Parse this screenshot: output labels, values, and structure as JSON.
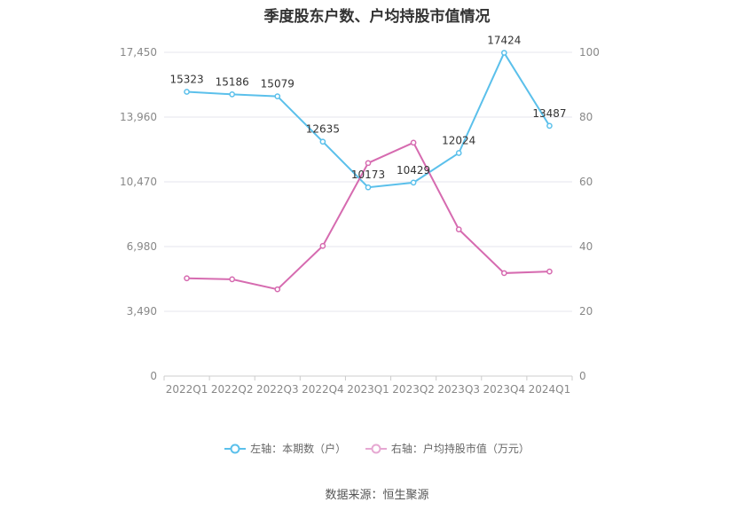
{
  "chart_data": {
    "type": "line",
    "title": "季度股东户数、户均持股市值情况",
    "categories": [
      "2022Q1",
      "2022Q2",
      "2022Q3",
      "2022Q4",
      "2023Q1",
      "2023Q2",
      "2023Q3",
      "2023Q4",
      "2024Q1"
    ],
    "left_axis": {
      "ylim": [
        0,
        17450
      ],
      "ticks": [
        "0",
        "3,490",
        "6,980",
        "10,470",
        "13,960",
        "17,450"
      ]
    },
    "right_axis": {
      "ylim": [
        0,
        100
      ],
      "ticks": [
        "0",
        "20",
        "40",
        "60",
        "80",
        "100"
      ]
    },
    "series": [
      {
        "name": "左轴：本期数（户）",
        "axis": "left",
        "color": "#5bc0eb",
        "values": [
          15323,
          15186,
          15079,
          12635,
          10173,
          10429,
          12024,
          17424,
          13487
        ],
        "labels": [
          "15323",
          "15186",
          "15079",
          "12635",
          "10173",
          "10429",
          "12024",
          "17424",
          "13487"
        ]
      },
      {
        "name": "右轴：户均持股市值（万元）",
        "axis": "right",
        "color": "#d66bb0",
        "values": [
          30.2,
          29.9,
          26.8,
          40.2,
          65.8,
          72.1,
          45.3,
          31.8,
          32.3
        ]
      }
    ],
    "grid": true,
    "legend_position": "bottom"
  },
  "source": "数据来源：恒生聚源"
}
